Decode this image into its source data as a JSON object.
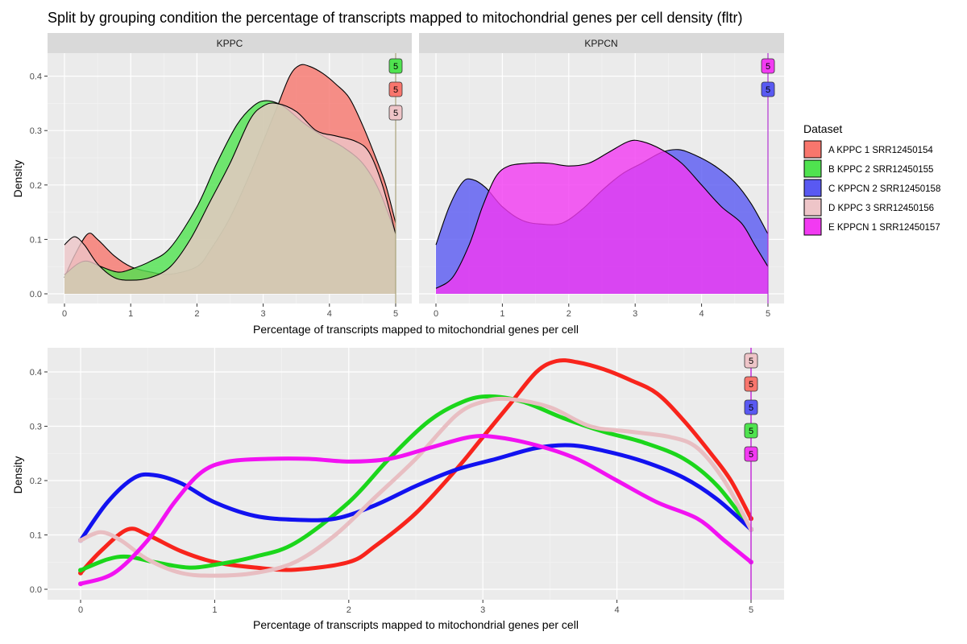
{
  "title": "Split by grouping condition the percentage of transcripts mapped to mitochondrial genes per cell density (fltr)",
  "legend": {
    "title": "Dataset",
    "entries": [
      {
        "label": "A KPPC 1 SRR12450154",
        "color": "#F8766D"
      },
      {
        "label": "B KPPC 2 SRR12450155",
        "color": "#4FE34F"
      },
      {
        "label": "C KPPCN 2 SRR12450158",
        "color": "#5959F2"
      },
      {
        "label": "D KPPC 3 SRR12450156",
        "color": "#EEC5C8"
      },
      {
        "label": "E KPPCN 1 SRR12450157",
        "color": "#F23AF2"
      }
    ]
  },
  "chart_data": [
    {
      "type": "area",
      "title": "",
      "xlabel": "Percentage of transcripts mapped to mitochondrial genes per cell",
      "ylabel": "Density",
      "xlim": [
        0,
        5
      ],
      "ylim": [
        0,
        0.44
      ],
      "xticks": [
        "0",
        "1",
        "2",
        "3",
        "4",
        "5"
      ],
      "yticks": [
        "0.0",
        "0.1",
        "0.2",
        "0.3",
        "0.4"
      ],
      "facets": [
        {
          "label": "KPPC",
          "vline": 5,
          "badges": [
            {
              "text": "5",
              "series": "B KPPC 2 SRR12450155"
            },
            {
              "text": "5",
              "series": "A KPPC 1 SRR12450154"
            },
            {
              "text": "5",
              "series": "D KPPC 3 SRR12450156"
            }
          ],
          "series": [
            {
              "name": "A KPPC 1 SRR12450154",
              "color": "#F8766D",
              "x": [
                0,
                0.15,
                0.35,
                0.5,
                0.75,
                1.0,
                1.3,
                1.6,
                2.0,
                2.2,
                2.5,
                2.8,
                3.0,
                3.2,
                3.4,
                3.55,
                3.7,
                3.9,
                4.1,
                4.3,
                4.5,
                4.7,
                4.85,
                5.0
              ],
              "y": [
                0.03,
                0.07,
                0.11,
                0.1,
                0.07,
                0.05,
                0.04,
                0.036,
                0.05,
                0.08,
                0.14,
                0.22,
                0.28,
                0.34,
                0.4,
                0.42,
                0.418,
                0.405,
                0.385,
                0.36,
                0.31,
                0.25,
                0.2,
                0.13
              ]
            },
            {
              "name": "B KPPC 2 SRR12450155",
              "color": "#4FE34F",
              "x": [
                0,
                0.2,
                0.35,
                0.55,
                0.8,
                1.0,
                1.3,
                1.6,
                2.0,
                2.3,
                2.6,
                2.85,
                3.05,
                3.3,
                3.6,
                3.9,
                4.2,
                4.5,
                4.75,
                5.0
              ],
              "y": [
                0.035,
                0.055,
                0.06,
                0.05,
                0.04,
                0.045,
                0.06,
                0.085,
                0.16,
                0.24,
                0.31,
                0.345,
                0.355,
                0.345,
                0.315,
                0.29,
                0.27,
                0.24,
                0.19,
                0.11
              ]
            },
            {
              "name": "D KPPC 3 SRR12450156",
              "color": "#EEC5C8",
              "x": [
                0,
                0.15,
                0.3,
                0.5,
                0.75,
                1.0,
                1.3,
                1.6,
                1.9,
                2.2,
                2.5,
                2.8,
                3.0,
                3.2,
                3.5,
                3.8,
                4.1,
                4.4,
                4.6,
                4.8,
                5.0
              ],
              "y": [
                0.09,
                0.105,
                0.09,
                0.055,
                0.03,
                0.025,
                0.03,
                0.05,
                0.1,
                0.17,
                0.24,
                0.32,
                0.345,
                0.35,
                0.335,
                0.3,
                0.29,
                0.28,
                0.26,
                0.2,
                0.11
              ]
            }
          ]
        },
        {
          "label": "KPPCN",
          "vline": 5,
          "badges": [
            {
              "text": "5",
              "series": "E KPPCN 1 SRR12450157"
            },
            {
              "text": "5",
              "series": "C KPPCN 2 SRR12450158"
            }
          ],
          "series": [
            {
              "name": "C KPPCN 2 SRR12450158",
              "color": "#5959F2",
              "x": [
                0,
                0.2,
                0.4,
                0.55,
                0.75,
                1.0,
                1.3,
                1.6,
                1.9,
                2.2,
                2.5,
                2.8,
                3.1,
                3.4,
                3.65,
                3.9,
                4.2,
                4.5,
                4.75,
                5.0
              ],
              "y": [
                0.09,
                0.16,
                0.205,
                0.21,
                0.195,
                0.16,
                0.135,
                0.128,
                0.13,
                0.155,
                0.19,
                0.22,
                0.24,
                0.26,
                0.265,
                0.255,
                0.235,
                0.205,
                0.165,
                0.11
              ]
            },
            {
              "name": "E KPPCN 1 SRR12450157",
              "color": "#F23AF2",
              "x": [
                0,
                0.25,
                0.5,
                0.7,
                0.9,
                1.1,
                1.4,
                1.7,
                2.0,
                2.3,
                2.6,
                2.9,
                3.1,
                3.4,
                3.7,
                4.0,
                4.3,
                4.6,
                4.8,
                5.0
              ],
              "y": [
                0.01,
                0.03,
                0.09,
                0.16,
                0.215,
                0.235,
                0.24,
                0.24,
                0.235,
                0.24,
                0.26,
                0.28,
                0.28,
                0.265,
                0.24,
                0.2,
                0.16,
                0.13,
                0.09,
                0.05
              ]
            }
          ]
        }
      ]
    },
    {
      "type": "line",
      "title": "",
      "xlabel": "Percentage of transcripts mapped to mitochondrial genes per cell",
      "ylabel": "Density",
      "xlim": [
        0,
        5
      ],
      "ylim": [
        0,
        0.43
      ],
      "xticks": [
        "0",
        "1",
        "2",
        "3",
        "4",
        "5"
      ],
      "yticks": [
        "0.0",
        "0.1",
        "0.2",
        "0.3",
        "0.4"
      ],
      "vline": 5,
      "badges": [
        {
          "text": "5",
          "series": "D KPPC 3 SRR12450156"
        },
        {
          "text": "5",
          "series": "A KPPC 1 SRR12450154"
        },
        {
          "text": "5",
          "series": "C KPPCN 2 SRR12450158"
        },
        {
          "text": "5",
          "series": "B KPPC 2 SRR12450155"
        },
        {
          "text": "5",
          "series": "E KPPCN 1 SRR12450157"
        }
      ],
      "series": [
        {
          "name": "A KPPC 1 SRR12450154",
          "color": "#F8241C",
          "x": [
            0,
            0.15,
            0.35,
            0.5,
            0.75,
            1.0,
            1.3,
            1.6,
            2.0,
            2.2,
            2.5,
            2.8,
            3.0,
            3.2,
            3.4,
            3.55,
            3.7,
            3.9,
            4.1,
            4.3,
            4.5,
            4.7,
            4.85,
            5.0
          ],
          "y": [
            0.03,
            0.07,
            0.11,
            0.1,
            0.07,
            0.05,
            0.04,
            0.036,
            0.05,
            0.08,
            0.14,
            0.22,
            0.28,
            0.34,
            0.4,
            0.42,
            0.418,
            0.405,
            0.385,
            0.36,
            0.31,
            0.25,
            0.2,
            0.13
          ]
        },
        {
          "name": "B KPPC 2 SRR12450155",
          "color": "#1BD61B",
          "x": [
            0,
            0.2,
            0.35,
            0.55,
            0.8,
            1.0,
            1.3,
            1.6,
            2.0,
            2.3,
            2.6,
            2.85,
            3.05,
            3.3,
            3.6,
            3.9,
            4.2,
            4.5,
            4.75,
            5.0
          ],
          "y": [
            0.035,
            0.055,
            0.06,
            0.05,
            0.04,
            0.045,
            0.06,
            0.085,
            0.16,
            0.24,
            0.31,
            0.345,
            0.355,
            0.345,
            0.315,
            0.29,
            0.27,
            0.24,
            0.19,
            0.11
          ]
        },
        {
          "name": "C KPPCN 2 SRR12450158",
          "color": "#1212F0",
          "x": [
            0,
            0.2,
            0.4,
            0.55,
            0.75,
            1.0,
            1.3,
            1.6,
            1.9,
            2.2,
            2.5,
            2.8,
            3.1,
            3.4,
            3.65,
            3.9,
            4.2,
            4.5,
            4.75,
            5.0
          ],
          "y": [
            0.09,
            0.16,
            0.205,
            0.21,
            0.195,
            0.16,
            0.135,
            0.128,
            0.13,
            0.155,
            0.19,
            0.22,
            0.24,
            0.26,
            0.265,
            0.255,
            0.235,
            0.205,
            0.165,
            0.11
          ]
        },
        {
          "name": "D KPPC 3 SRR12450156",
          "color": "#E8BEC2",
          "x": [
            0,
            0.15,
            0.3,
            0.5,
            0.75,
            1.0,
            1.3,
            1.6,
            1.9,
            2.2,
            2.5,
            2.8,
            3.0,
            3.2,
            3.5,
            3.8,
            4.1,
            4.4,
            4.6,
            4.8,
            5.0
          ],
          "y": [
            0.09,
            0.105,
            0.09,
            0.055,
            0.03,
            0.025,
            0.03,
            0.05,
            0.1,
            0.17,
            0.24,
            0.32,
            0.345,
            0.35,
            0.335,
            0.3,
            0.29,
            0.28,
            0.26,
            0.2,
            0.11
          ]
        },
        {
          "name": "E KPPCN 1 SRR12450157",
          "color": "#F212F2",
          "x": [
            0,
            0.25,
            0.5,
            0.7,
            0.9,
            1.1,
            1.4,
            1.7,
            2.0,
            2.3,
            2.6,
            2.9,
            3.1,
            3.4,
            3.7,
            4.0,
            4.3,
            4.6,
            4.8,
            5.0
          ],
          "y": [
            0.01,
            0.03,
            0.09,
            0.16,
            0.215,
            0.235,
            0.24,
            0.24,
            0.235,
            0.24,
            0.26,
            0.28,
            0.28,
            0.265,
            0.24,
            0.2,
            0.16,
            0.13,
            0.09,
            0.05
          ]
        }
      ]
    }
  ]
}
